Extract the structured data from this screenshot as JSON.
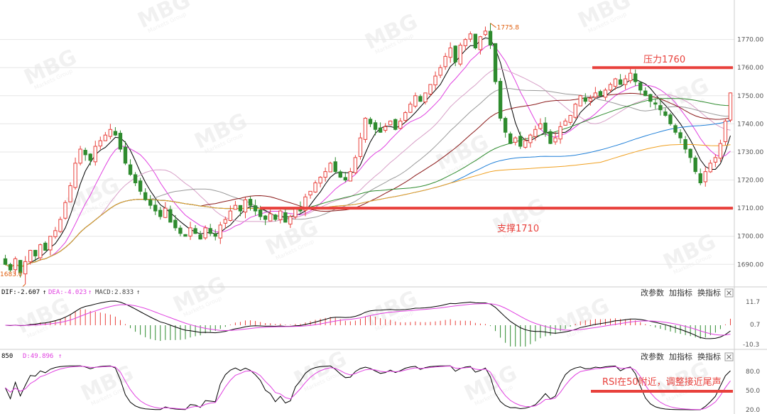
{
  "chart_data": [
    {
      "type": "candlestick",
      "title": "",
      "ylim": [
        1683,
        1779
      ],
      "y_ticks": [
        1690,
        1700,
        1710,
        1720,
        1730,
        1740,
        1750,
        1760,
        1770
      ],
      "y_tick_labels": [
        "1690.00",
        "1700.00",
        "1710.00",
        "1720.00",
        "1730.00",
        "1740.00",
        "1750.00",
        "1760.00",
        "1770.00"
      ],
      "grid": true,
      "high_marker": {
        "value": 1775.8,
        "label": "1775.8"
      },
      "low_marker": {
        "value": 1683.0,
        "label": "1683.0"
      },
      "levels": [
        {
          "name": "resistance",
          "value": 1760,
          "label": "压力1760",
          "color": "#e8413c"
        },
        {
          "name": "support",
          "value": 1710,
          "label": "支撑1710",
          "color": "#e8413c"
        }
      ],
      "up_color": "#e8413c",
      "down_color": "#2e8b2e",
      "close": [
        1690,
        1688,
        1692,
        1687,
        1691,
        1695,
        1693,
        1697,
        1695,
        1700,
        1702,
        1706,
        1712,
        1718,
        1726,
        1731,
        1729,
        1727,
        1732,
        1734,
        1736,
        1738,
        1736,
        1731,
        1726,
        1722,
        1719,
        1716,
        1713,
        1711,
        1709,
        1707,
        1710,
        1705,
        1703,
        1701,
        1700,
        1703,
        1701,
        1699,
        1703,
        1701,
        1700,
        1704,
        1706,
        1709,
        1711,
        1709,
        1713,
        1711,
        1709,
        1707,
        1706,
        1708,
        1706,
        1709,
        1705,
        1707,
        1710,
        1709,
        1714,
        1716,
        1719,
        1721,
        1723,
        1726,
        1723,
        1721,
        1720,
        1723,
        1728,
        1735,
        1742,
        1740,
        1738,
        1737,
        1739,
        1741,
        1738,
        1741,
        1744,
        1747,
        1750,
        1748,
        1751,
        1754,
        1757,
        1760,
        1764,
        1767,
        1762,
        1768,
        1770,
        1772,
        1767,
        1771,
        1773,
        1768,
        1755,
        1742,
        1737,
        1733,
        1735,
        1732,
        1734,
        1736,
        1738,
        1740,
        1737,
        1733,
        1735,
        1739,
        1741,
        1743,
        1747,
        1750,
        1748,
        1749,
        1751,
        1750,
        1752,
        1754,
        1756,
        1754,
        1756,
        1758,
        1755,
        1752,
        1750,
        1748,
        1747,
        1745,
        1743,
        1740,
        1737,
        1735,
        1731,
        1728,
        1723,
        1719,
        1723,
        1726,
        1728,
        1733,
        1741,
        1751
      ],
      "indicators": [
        {
          "name": "MACD",
          "labels": [
            "DIF:-2.607",
            "DEA:-4.023",
            "MACD:2.833"
          ],
          "y_ticks": [
            "11.7",
            "0.7",
            "-10.3"
          ],
          "toolbar": [
            "改参数",
            "加指标",
            "换指标"
          ]
        },
        {
          "name": "RSI",
          "labels": [
            "850",
            "D:49.896"
          ],
          "y_ticks": [
            "80.0",
            "50.0",
            "20.0"
          ],
          "toolbar": [
            "改参数",
            "加指标",
            "换指标"
          ],
          "level": 50
        }
      ]
    }
  ],
  "annotations": {
    "resistance": "压力1760",
    "support": "支撑1710",
    "rsi_note": "RSI在50附近，调整接近尾声"
  },
  "macd_panel": {
    "dif": "DIF:-2.607",
    "dea": "DEA:-4.023",
    "macd": "MACD:2.833",
    "ticks": [
      "11.7",
      "0.7",
      "-10.3"
    ],
    "buttons": [
      "改参数",
      "加指标",
      "换指标"
    ]
  },
  "rsi_panel": {
    "label_a": "850",
    "label_b": "D:49.896",
    "ticks": [
      "80.0",
      "50.0",
      "20.0"
    ],
    "buttons": [
      "改参数",
      "加指标",
      "换指标"
    ]
  },
  "markers": {
    "high": "1775.8",
    "low": "1683.0"
  },
  "watermark": {
    "brand": "MBG",
    "sub": "Markets Group"
  },
  "colors": {
    "up": "#e8413c",
    "down": "#2e8b2e",
    "level_line": "#e8413c",
    "ma_black": "#000000",
    "ma_magenta": "#e040e0",
    "ma_pink": "#d8a0c8",
    "ma_gray": "#999999",
    "ma_darkred": "#8b1a1a",
    "ma_green": "#2e8b2e",
    "ma_blue": "#1e7fd8",
    "ma_orange": "#f0a020",
    "dif_color": "#000000",
    "dea_color": "#e040e0",
    "grid": "#e6e6e6"
  }
}
